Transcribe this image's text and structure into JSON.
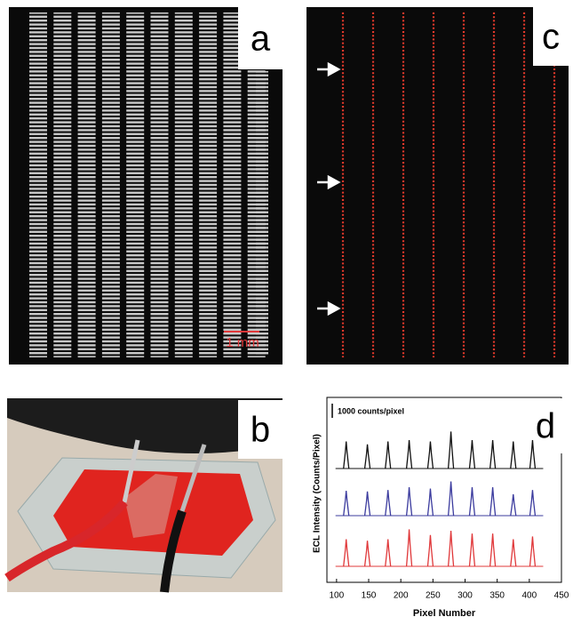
{
  "panels": {
    "a": {
      "label": "a",
      "scale_bar": "1 mm"
    },
    "b": {
      "label": "b"
    },
    "c": {
      "label": "c"
    },
    "d": {
      "label": "d"
    }
  },
  "chart_data": {
    "type": "spectrum",
    "x_label": "Pixel Number",
    "y_label": "ECL Intensity (Counts/Pixel)",
    "x": [
      115,
      148,
      180,
      213,
      246,
      278,
      311,
      343,
      375,
      405
    ],
    "series": [
      {
        "color": "#111111",
        "values": [
          1900,
          1700,
          1900,
          2000,
          1900,
          2600,
          2000,
          2000,
          1900,
          2000
        ]
      },
      {
        "color": "#3b3b9e",
        "values": [
          1750,
          1700,
          1800,
          2000,
          1900,
          2400,
          2000,
          2000,
          1500,
          1800
        ]
      },
      {
        "color": "#e0383a",
        "values": [
          1900,
          1800,
          1900,
          2600,
          2200,
          2500,
          2300,
          2300,
          1900,
          2100
        ]
      }
    ],
    "xlim": [
      85,
      450
    ],
    "xticks": [
      100,
      150,
      200,
      250,
      300,
      350,
      400,
      450
    ],
    "scale_bar": {
      "value": 1000,
      "label": "1000 counts/pixel"
    }
  }
}
